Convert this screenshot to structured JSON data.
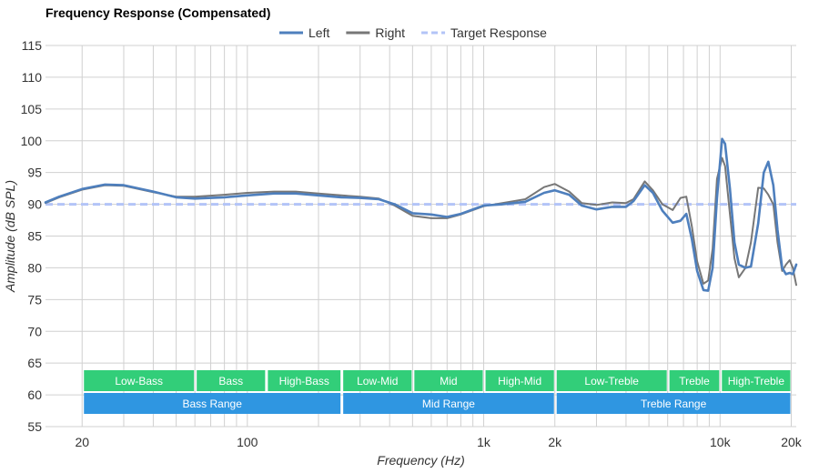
{
  "chart_data": {
    "type": "line",
    "title": "Frequency Response (Compensated)",
    "xlabel": "Frequency (Hz)",
    "ylabel": "Amplitude (dB SPL)",
    "x_scale": "log",
    "xlim": [
      14,
      21000
    ],
    "ylim": [
      55,
      115
    ],
    "grid": true,
    "legend_position": "top-center",
    "x_ticks": [
      {
        "value": 20,
        "label": "20"
      },
      {
        "value": 100,
        "label": "100"
      },
      {
        "value": 1000,
        "label": "1k"
      },
      {
        "value": 2000,
        "label": "2k"
      },
      {
        "value": 10000,
        "label": "10k"
      },
      {
        "value": 20000,
        "label": "20k"
      }
    ],
    "y_ticks": [
      55,
      60,
      65,
      70,
      75,
      80,
      85,
      90,
      95,
      100,
      105,
      110,
      115
    ],
    "series": [
      {
        "name": "Left",
        "color": "#4e7fbd",
        "style": "solid",
        "points": [
          [
            14,
            90.3
          ],
          [
            16,
            91.2
          ],
          [
            20,
            92.4
          ],
          [
            25,
            93.1
          ],
          [
            30,
            93.0
          ],
          [
            40,
            92.0
          ],
          [
            50,
            91.1
          ],
          [
            60,
            90.9
          ],
          [
            80,
            91.1
          ],
          [
            100,
            91.4
          ],
          [
            130,
            91.7
          ],
          [
            160,
            91.7
          ],
          [
            200,
            91.4
          ],
          [
            250,
            91.1
          ],
          [
            300,
            91.0
          ],
          [
            360,
            90.8
          ],
          [
            420,
            90.0
          ],
          [
            500,
            88.6
          ],
          [
            600,
            88.4
          ],
          [
            700,
            88.0
          ],
          [
            800,
            88.5
          ],
          [
            1000,
            89.8
          ],
          [
            1200,
            90.0
          ],
          [
            1500,
            90.4
          ],
          [
            1800,
            91.8
          ],
          [
            2000,
            92.2
          ],
          [
            2300,
            91.5
          ],
          [
            2600,
            89.8
          ],
          [
            3000,
            89.2
          ],
          [
            3500,
            89.6
          ],
          [
            4000,
            89.6
          ],
          [
            4300,
            90.5
          ],
          [
            4800,
            93.0
          ],
          [
            5200,
            91.8
          ],
          [
            5700,
            89.0
          ],
          [
            6300,
            87.1
          ],
          [
            6800,
            87.4
          ],
          [
            7200,
            88.5
          ],
          [
            7600,
            84.5
          ],
          [
            8000,
            79.5
          ],
          [
            8500,
            76.5
          ],
          [
            8900,
            76.4
          ],
          [
            9300,
            80.0
          ],
          [
            9700,
            91.0
          ],
          [
            10200,
            100.3
          ],
          [
            10500,
            99.5
          ],
          [
            11000,
            92.5
          ],
          [
            11500,
            84.0
          ],
          [
            12000,
            80.5
          ],
          [
            12800,
            80.0
          ],
          [
            13500,
            80.2
          ],
          [
            14500,
            87.0
          ],
          [
            15300,
            95.0
          ],
          [
            16000,
            96.7
          ],
          [
            16800,
            93.0
          ],
          [
            17500,
            86.0
          ],
          [
            18300,
            80.0
          ],
          [
            19000,
            79.0
          ],
          [
            19700,
            79.2
          ],
          [
            20300,
            79.0
          ],
          [
            21000,
            80.5
          ]
        ]
      },
      {
        "name": "Right",
        "color": "#777777",
        "style": "solid",
        "points": [
          [
            14,
            90.2
          ],
          [
            16,
            91.1
          ],
          [
            20,
            92.3
          ],
          [
            25,
            93.0
          ],
          [
            30,
            92.9
          ],
          [
            40,
            91.9
          ],
          [
            50,
            91.2
          ],
          [
            60,
            91.2
          ],
          [
            80,
            91.5
          ],
          [
            100,
            91.8
          ],
          [
            130,
            92.0
          ],
          [
            160,
            92.0
          ],
          [
            200,
            91.7
          ],
          [
            250,
            91.4
          ],
          [
            300,
            91.2
          ],
          [
            360,
            90.9
          ],
          [
            420,
            89.8
          ],
          [
            500,
            88.2
          ],
          [
            600,
            87.8
          ],
          [
            700,
            87.8
          ],
          [
            800,
            88.4
          ],
          [
            1000,
            89.7
          ],
          [
            1200,
            90.2
          ],
          [
            1500,
            90.8
          ],
          [
            1800,
            92.7
          ],
          [
            2000,
            93.2
          ],
          [
            2300,
            92.0
          ],
          [
            2600,
            90.2
          ],
          [
            3000,
            89.9
          ],
          [
            3500,
            90.3
          ],
          [
            4000,
            90.2
          ],
          [
            4300,
            90.8
          ],
          [
            4800,
            93.6
          ],
          [
            5200,
            92.2
          ],
          [
            5700,
            90.0
          ],
          [
            6300,
            89.1
          ],
          [
            6800,
            91.0
          ],
          [
            7200,
            91.2
          ],
          [
            7600,
            86.5
          ],
          [
            8000,
            81.0
          ],
          [
            8500,
            77.5
          ],
          [
            8900,
            78.0
          ],
          [
            9300,
            83.0
          ],
          [
            9700,
            94.0
          ],
          [
            10200,
            97.3
          ],
          [
            10500,
            96.0
          ],
          [
            11000,
            88.5
          ],
          [
            11500,
            81.5
          ],
          [
            12000,
            78.5
          ],
          [
            12800,
            80.0
          ],
          [
            13500,
            84.0
          ],
          [
            14500,
            92.6
          ],
          [
            15300,
            92.5
          ],
          [
            16000,
            91.5
          ],
          [
            16800,
            90.0
          ],
          [
            17500,
            84.0
          ],
          [
            18300,
            79.5
          ],
          [
            19000,
            80.5
          ],
          [
            19700,
            81.2
          ],
          [
            20300,
            80.0
          ],
          [
            21000,
            77.3
          ]
        ]
      },
      {
        "name": "Target Response",
        "color": "#b3c4f7",
        "style": "dashed",
        "points": [
          [
            14,
            90
          ],
          [
            21000,
            90
          ]
        ]
      }
    ],
    "band_rows": [
      {
        "color": "#32ce79",
        "bands": [
          {
            "label": "Low-Bass",
            "from": 20,
            "to": 60
          },
          {
            "label": "Bass",
            "from": 60,
            "to": 120
          },
          {
            "label": "High-Bass",
            "from": 120,
            "to": 250
          },
          {
            "label": "Low-Mid",
            "from": 250,
            "to": 500
          },
          {
            "label": "Mid",
            "from": 500,
            "to": 1000
          },
          {
            "label": "High-Mid",
            "from": 1000,
            "to": 2000
          },
          {
            "label": "Low-Treble",
            "from": 2000,
            "to": 6000
          },
          {
            "label": "Treble",
            "from": 6000,
            "to": 10000
          },
          {
            "label": "High-Treble",
            "from": 10000,
            "to": 20000
          }
        ]
      },
      {
        "color": "#2f96e1",
        "bands": [
          {
            "label": "Bass Range",
            "from": 20,
            "to": 250
          },
          {
            "label": "Mid Range",
            "from": 250,
            "to": 2000
          },
          {
            "label": "Treble Range",
            "from": 2000,
            "to": 20000
          }
        ]
      }
    ]
  }
}
